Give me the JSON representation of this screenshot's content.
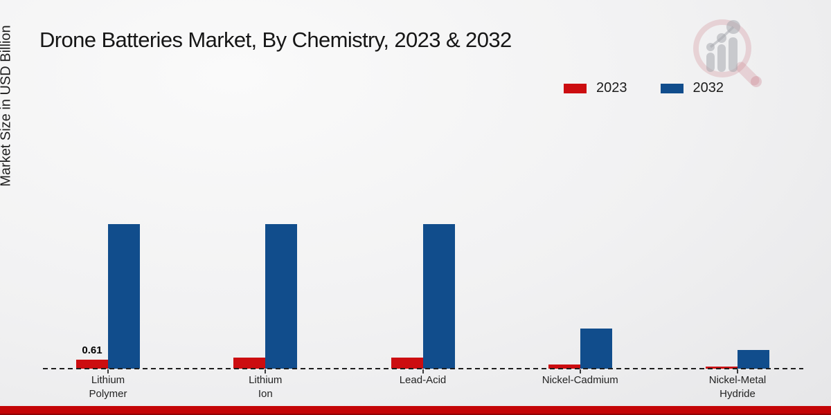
{
  "chart_data": {
    "type": "bar",
    "title": "Drone Batteries Market, By Chemistry, 2023 & 2032",
    "ylabel": "Market Size in USD Billion",
    "xlabel": "",
    "categories": [
      "Lithium Polymer",
      "Lithium Ion",
      "Lead-Acid",
      "Nickel-Cadmium",
      "Nickel-Metal Hydride"
    ],
    "category_lines": [
      [
        "Lithium",
        "Polymer"
      ],
      [
        "Lithium",
        "Ion"
      ],
      [
        "Lead-Acid"
      ],
      [
        "Nickel-Cadmium"
      ],
      [
        "Nickel-Metal",
        "Hydride"
      ]
    ],
    "series": [
      {
        "name": "2023",
        "color": "#cc0d10",
        "values": [
          0.61,
          0.75,
          0.73,
          0.28,
          0.14
        ]
      },
      {
        "name": "2032",
        "color": "#114d8c",
        "values": [
          9.8,
          9.8,
          9.8,
          2.72,
          1.27
        ]
      }
    ],
    "value_labels": [
      {
        "category": "Lithium Polymer",
        "series": "2023",
        "text": "0.61"
      }
    ],
    "ylim": [
      0,
      10
    ],
    "grid": false,
    "y_axis_ticks_visible": false,
    "baseline_style": "dashed",
    "legend_position": "top-right"
  },
  "brand": {
    "footer_bar_color": "#c40507",
    "watermark_ring_color": "rgba(201,125,137,0.30)",
    "watermark_bar_color": "rgba(158,160,168,0.55)"
  }
}
